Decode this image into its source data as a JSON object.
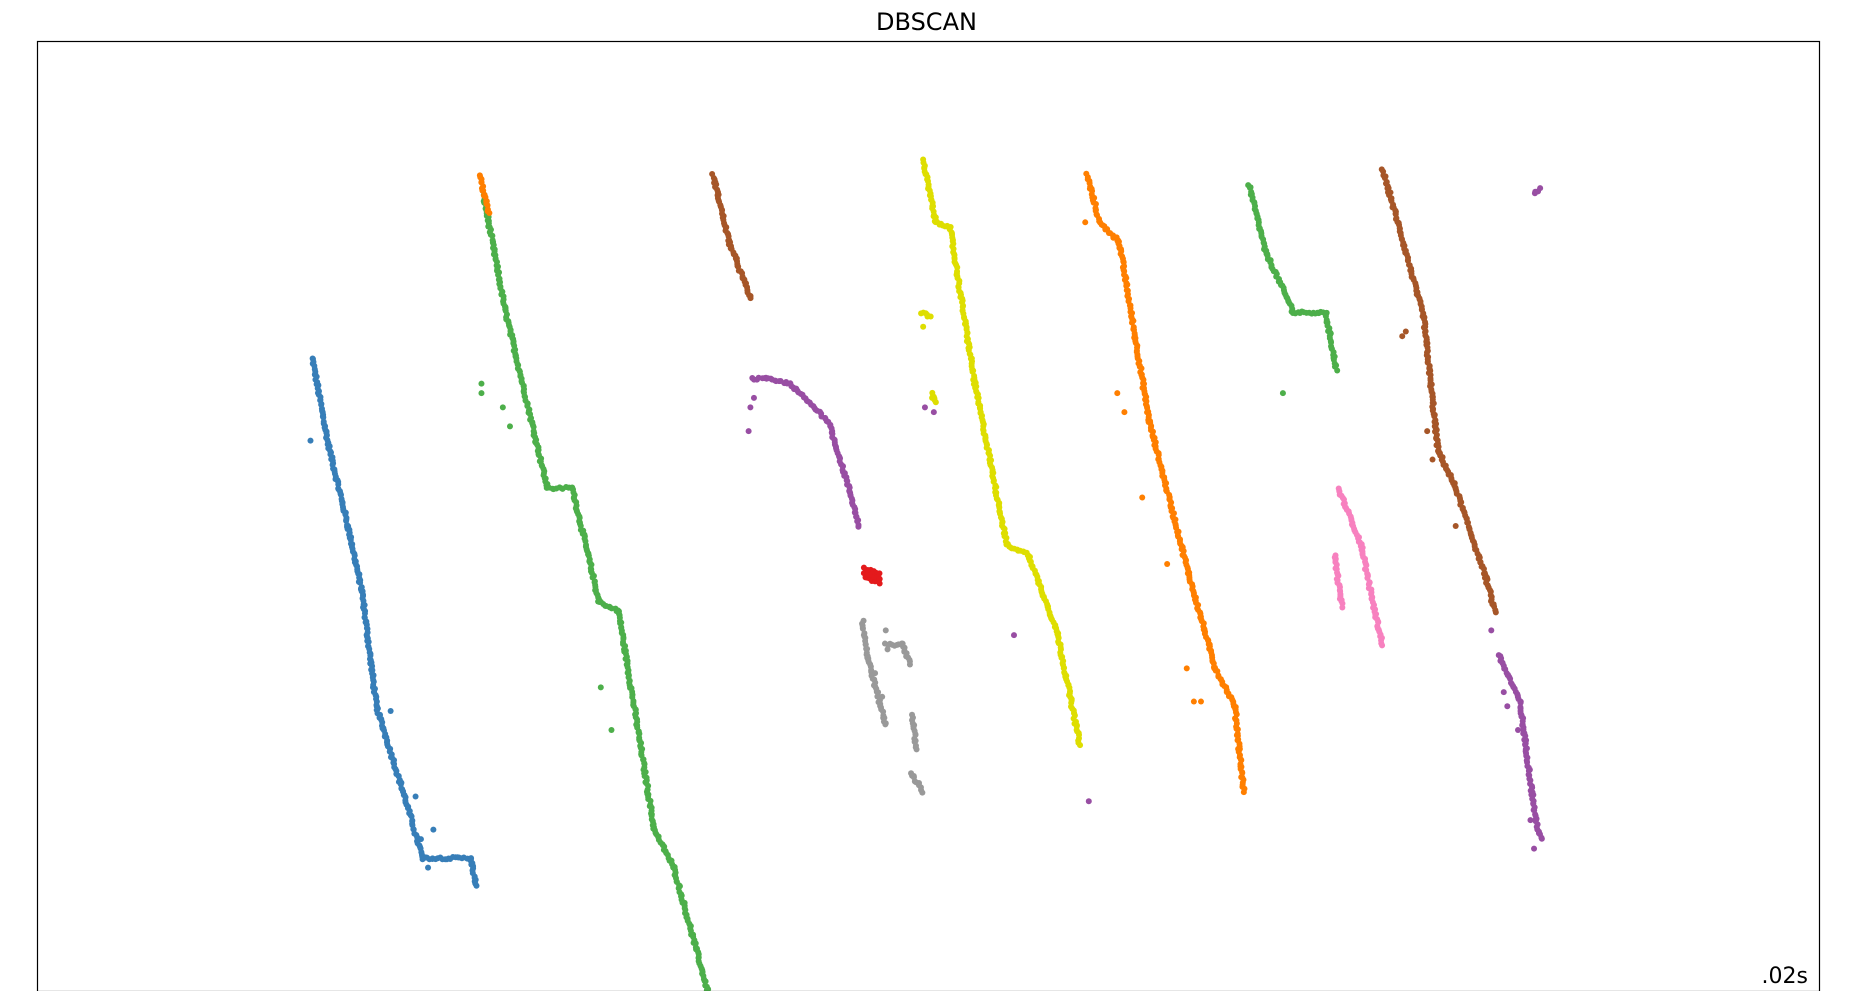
{
  "chart_data": {
    "type": "scatter",
    "title": "DBSCAN",
    "xlabel": "",
    "ylabel": "",
    "grid": false,
    "axes_ticks": false,
    "xlim": [
      0,
      100
    ],
    "ylim": [
      0,
      100
    ],
    "annotation": ".02s",
    "series": [
      {
        "color": "#377eb8",
        "segments": [
          [
            15.4,
            66.7,
            16.3,
            57.6,
            380
          ],
          [
            16.3,
            57.6,
            17.4,
            49.0,
            380
          ],
          [
            17.4,
            49.0,
            18.2,
            42.0,
            380
          ],
          [
            18.2,
            42.0,
            19.0,
            30.0,
            380
          ],
          [
            19.0,
            30.0,
            20.5,
            21.0,
            380
          ],
          [
            20.5,
            21.0,
            21.6,
            14.0,
            380
          ],
          [
            21.6,
            14.0,
            24.3,
            14.0,
            60
          ],
          [
            24.3,
            14.0,
            24.6,
            11.0,
            380
          ]
        ],
        "points": [
          [
            15.3,
            58.0
          ],
          [
            19.8,
            29.5
          ],
          [
            21.2,
            20.5
          ],
          [
            21.5,
            16.0
          ],
          [
            21.9,
            13.0
          ],
          [
            22.2,
            17.0
          ]
        ]
      },
      {
        "color": "#4daf4a",
        "segments": [
          [
            25.0,
            84.0,
            26.2,
            72.0,
            370
          ],
          [
            26.2,
            72.0,
            28.6,
            53.0,
            370
          ],
          [
            28.6,
            53.0,
            30.0,
            53.0,
            370
          ],
          [
            30.0,
            53.0,
            31.5,
            41.0,
            370
          ],
          [
            31.5,
            41.0,
            32.6,
            40.0,
            370
          ],
          [
            32.6,
            40.0,
            34.6,
            17.0,
            370
          ],
          [
            34.6,
            17.0,
            35.7,
            13.0,
            370
          ],
          [
            35.7,
            13.0,
            37.6,
            0.0,
            370
          ],
          [
            68.0,
            85.0,
            68.9,
            78.0,
            380
          ],
          [
            68.9,
            78.0,
            70.5,
            71.5,
            380
          ],
          [
            70.5,
            71.5,
            72.3,
            71.5,
            380
          ],
          [
            72.3,
            71.5,
            72.9,
            65.5,
            380
          ]
        ],
        "points": [
          [
            24.9,
            64.0
          ],
          [
            24.9,
            63.0
          ],
          [
            26.1,
            61.5
          ],
          [
            26.5,
            59.5
          ],
          [
            31.6,
            32.0
          ],
          [
            32.2,
            27.5
          ],
          [
            69.9,
            63.0
          ]
        ]
      },
      {
        "color": "#ff7f00",
        "segments": [
          [
            24.8,
            86.0,
            25.3,
            82.0,
            380
          ],
          [
            58.9,
            86.0,
            59.6,
            81.0,
            380
          ],
          [
            59.6,
            81.0,
            60.7,
            79.0,
            380
          ],
          [
            60.7,
            79.0,
            62.4,
            60.0,
            380
          ],
          [
            62.4,
            60.0,
            64.6,
            44.0,
            380
          ],
          [
            64.6,
            44.0,
            66.1,
            34.0,
            380
          ],
          [
            66.1,
            34.0,
            67.2,
            30.0,
            380
          ],
          [
            67.2,
            30.0,
            67.7,
            21.0,
            380
          ]
        ],
        "points": [
          [
            58.8,
            81.0
          ],
          [
            60.6,
            63.0
          ],
          [
            61.0,
            61.0
          ],
          [
            62.0,
            52.0
          ],
          [
            63.4,
            45.0
          ],
          [
            64.5,
            34.0
          ],
          [
            64.9,
            30.5
          ],
          [
            65.3,
            30.5
          ]
        ]
      },
      {
        "color": "#a65628",
        "segments": [
          [
            37.9,
            86.0,
            38.8,
            79.0,
            380
          ],
          [
            38.8,
            79.0,
            40.0,
            73.0,
            380
          ],
          [
            75.5,
            86.5,
            76.2,
            82.0,
            380
          ],
          [
            76.2,
            82.0,
            77.8,
            71.0,
            380
          ],
          [
            77.8,
            71.0,
            78.6,
            57.0,
            380
          ],
          [
            78.6,
            57.0,
            79.6,
            53.0,
            380
          ],
          [
            79.6,
            53.0,
            81.3,
            43.5,
            380
          ],
          [
            81.3,
            43.5,
            81.8,
            40.0,
            380
          ]
        ],
        "points": [
          [
            76.6,
            69.0
          ],
          [
            76.8,
            69.5
          ],
          [
            78.0,
            59.0
          ],
          [
            78.3,
            56.0
          ],
          [
            79.6,
            49.0
          ]
        ]
      },
      {
        "color": "#984ea3",
        "segments": [
          [
            40.1,
            64.5,
            40.9,
            64.5,
            380
          ],
          [
            40.9,
            64.5,
            42.2,
            64.0,
            380
          ],
          [
            42.2,
            64.0,
            44.4,
            60.0,
            380
          ],
          [
            44.4,
            60.0,
            45.6,
            52.5,
            380
          ],
          [
            45.6,
            52.5,
            46.1,
            49.0,
            380
          ],
          [
            82.0,
            35.5,
            83.2,
            30.5,
            380
          ],
          [
            83.2,
            30.5,
            84.1,
            18.0,
            380
          ],
          [
            84.1,
            18.0,
            84.4,
            16.0,
            380
          ],
          [
            84.0,
            84.0,
            84.3,
            84.5,
            380
          ]
        ],
        "points": [
          [
            40.2,
            62.5
          ],
          [
            40.0,
            61.5
          ],
          [
            39.9,
            59.0
          ],
          [
            50.3,
            61.0
          ],
          [
            49.8,
            61.5
          ],
          [
            54.8,
            37.5
          ],
          [
            59.0,
            20.0
          ],
          [
            81.6,
            38.0
          ],
          [
            82.3,
            31.5
          ],
          [
            82.5,
            30.0
          ],
          [
            83.1,
            27.5
          ],
          [
            83.5,
            26.0
          ],
          [
            84.0,
            15.0
          ],
          [
            83.8,
            18.0
          ]
        ]
      },
      {
        "color": "#e41a1c",
        "segments": [
          [
            46.4,
            44.5,
            47.2,
            44.0,
            380
          ],
          [
            46.5,
            43.5,
            47.3,
            43.0,
            380
          ],
          [
            46.4,
            44.0,
            47.3,
            43.5,
            380
          ]
        ],
        "points": []
      },
      {
        "color": "#999999",
        "segments": [
          [
            46.3,
            39.0,
            46.6,
            35.0,
            380
          ],
          [
            46.6,
            35.0,
            47.6,
            28.0,
            380
          ],
          [
            47.6,
            36.5,
            48.5,
            36.5,
            380
          ],
          [
            48.5,
            36.5,
            49.0,
            34.5,
            380
          ],
          [
            49.1,
            29.0,
            49.3,
            25.5,
            380
          ],
          [
            49.0,
            23.0,
            49.7,
            21.0,
            380
          ]
        ],
        "points": [
          [
            47.0,
            33.5
          ],
          [
            47.4,
            31.0
          ],
          [
            47.6,
            38.0
          ],
          [
            47.7,
            36.0
          ]
        ]
      },
      {
        "color": "#dede00",
        "segments": [
          [
            49.7,
            87.5,
            50.4,
            81.0,
            380
          ],
          [
            50.4,
            81.0,
            51.2,
            80.5,
            380
          ],
          [
            51.2,
            80.5,
            52.6,
            64.0,
            380
          ],
          [
            52.6,
            64.0,
            54.4,
            47.0,
            380
          ],
          [
            54.4,
            47.0,
            55.6,
            46.0,
            380
          ],
          [
            55.6,
            46.0,
            57.2,
            38.0,
            380
          ],
          [
            57.2,
            38.0,
            58.5,
            26.0,
            380
          ],
          [
            49.6,
            71.5,
            50.1,
            71.0,
            380
          ],
          [
            50.2,
            63.0,
            50.4,
            62.0,
            380
          ]
        ],
        "points": [
          [
            49.7,
            70.0
          ],
          [
            50.2,
            62.5
          ]
        ]
      },
      {
        "color": "#f781bf",
        "segments": [
          [
            73.0,
            53.0,
            74.3,
            47.0,
            380
          ],
          [
            74.3,
            47.0,
            75.0,
            40.5,
            380
          ],
          [
            75.0,
            40.5,
            75.5,
            36.5,
            380
          ],
          [
            72.8,
            46.0,
            73.2,
            40.5,
            380
          ]
        ],
        "points": []
      }
    ]
  }
}
